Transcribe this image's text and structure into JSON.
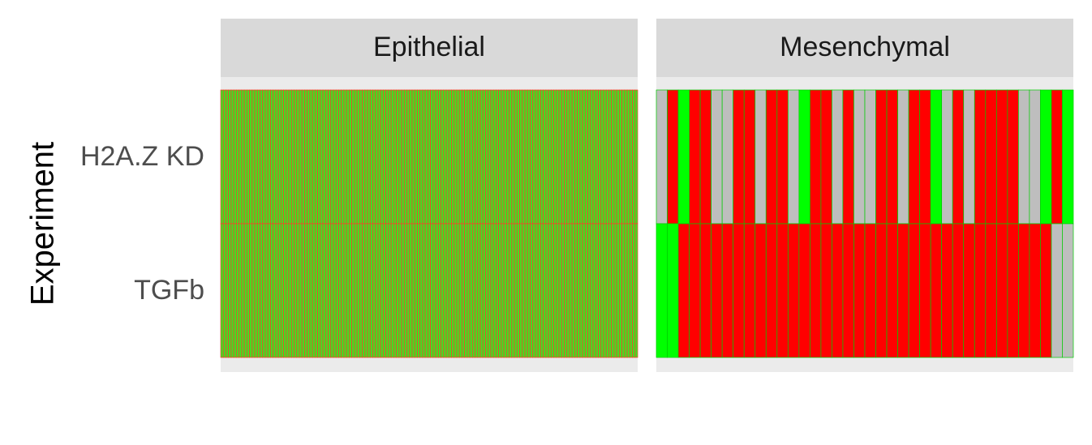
{
  "chart_data": {
    "type": "heatmap",
    "ylabel": "Experiment",
    "facets": [
      "Epithelial",
      "Mesenchymal"
    ],
    "rows": [
      "H2A.Z KD",
      "TGFb"
    ],
    "colors": {
      "green": "#44dd22",
      "bright_green": "#00ff00",
      "red": "#ff0000",
      "grey": "#bebebe",
      "strip_background": "#d9d9d9",
      "panel_background": "#ebebeb",
      "epithelial_cell_border": "#ff3a2a",
      "mesenchymal_cell_border": "#00cc00"
    },
    "cells": {
      "Epithelial": {
        "H2A.Z KD": "GGGGGGGGGGGGGGGGGGGGGGGGGGGGGGGGGGGGGGGGGGGGGGGGGGGGGGGGGGGGGGGGGGGGGGGGGGGGGGGGGGGGGGGGGGGGGGGGGGGGGGGGGGGGGGGGGGGGGGGGGGGGGGGGGGGGGGGGGGGGGGGGGGGGGGGGGGGGGGG",
        "TGFb": "GGGGGGGGGGGGGGGGGGGGGGGGGGGGGGGGGGGGGGGGGGGGGGGGGGGGGGGGGGGGGGGGGGGGGGGGGGGGGGGGGGGGGGGGGGGGGGGGGGGGGGGGGGGGGGGGGGGGGGGGGGGGGGGGGGGGGGGGGGGGGGGGGGGGGGGGGGGGGGG"
      },
      "Mesenchymal": {
        "H2A.Z KD": "XRGRRXXRRXRRXGRRXRXXRRXRRGXRXRRRRXXGRG",
        "TGFb": "GGRRRRRRRRRRRRRRRRRRRRRRRRRRRRRRRRRRXX"
      }
    }
  }
}
